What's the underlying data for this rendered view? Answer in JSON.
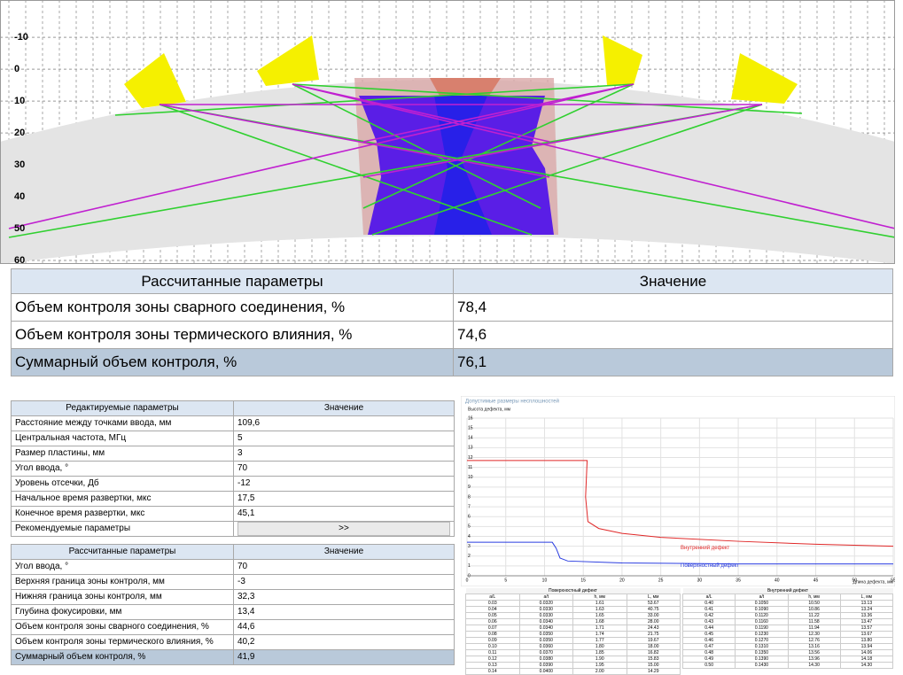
{
  "visualization": {
    "ylim": [
      -21.7,
      61.1
    ],
    "yticks": [
      -10,
      0,
      10,
      20,
      30,
      40,
      50,
      60
    ]
  },
  "result_table": {
    "header": [
      "Рассчитанные параметры",
      "Значение"
    ],
    "rows": [
      [
        "Объем контроля зоны сварного соединения, %",
        "78,4"
      ],
      [
        "Объем контроля зоны термического влияния, %",
        "74,6"
      ],
      [
        "Суммарный объем контроля, %",
        "76,1"
      ]
    ]
  },
  "editable_table": {
    "header": [
      "Редактируемые параметры",
      "Значение"
    ],
    "rows": [
      [
        "Расстояние между точками ввода, мм",
        "109,6"
      ],
      [
        "Центральная частота, МГц",
        "5"
      ],
      [
        "Размер пластины, мм",
        "3"
      ],
      [
        "Угол ввода, °",
        "70"
      ],
      [
        "Уровень отсечки, Дб",
        "-12"
      ],
      [
        "Начальное время развертки, мкс",
        "17,5"
      ],
      [
        "Конечное  время развертки, мкс",
        "45,1"
      ]
    ],
    "recommended": "Рекомендуемые параметры",
    "button": ">>"
  },
  "calculated_table": {
    "header": [
      "Рассчитанные параметры",
      "Значение"
    ],
    "rows": [
      [
        "Угол ввода, °",
        "70"
      ],
      [
        "Верхняя граница зоны контроля, мм",
        "-3"
      ],
      [
        "Нижняя граница зоны контроля, мм",
        "32,3"
      ],
      [
        "Глубина фокусировки, мм",
        "13,4"
      ],
      [
        "Объем контроля зоны сварного соединения, %",
        "44,6"
      ],
      [
        "Объем контроля зоны термического влияния, %",
        "40,2"
      ],
      [
        "Суммарный объем контроля, %",
        "41,9"
      ]
    ]
  },
  "chart_data": {
    "type": "line",
    "title": "Допустимые размеры несплошностей",
    "y_label": "Высота дефекта, мм",
    "x_label": "Длина дефекта, мм",
    "xlim": [
      0,
      55
    ],
    "xticks": [
      0,
      5,
      10,
      15,
      20,
      25,
      30,
      35,
      40,
      45,
      50,
      55
    ],
    "ylim": [
      0,
      16
    ],
    "yticks": [
      0,
      1,
      2,
      3,
      4,
      5,
      6,
      7,
      8,
      9,
      10,
      11,
      12,
      13,
      14,
      15,
      16
    ],
    "grid": true,
    "series": [
      {
        "name": "Внутренний дефект",
        "color": "#e02828",
        "x": [
          0,
          15.5,
          15.3,
          15.6,
          17,
          20,
          25,
          35,
          45,
          55
        ],
        "values": [
          11.7,
          11.7,
          8,
          5.5,
          4.8,
          4.3,
          3.9,
          3.5,
          3.2,
          3.0
        ]
      },
      {
        "name": "Поверхностный дефект",
        "color": "#2a3de0",
        "x": [
          0,
          11,
          11.5,
          12,
          13,
          20,
          35,
          55
        ],
        "values": [
          3.4,
          3.4,
          2.8,
          1.8,
          1.5,
          1.3,
          1.2,
          1.2
        ]
      }
    ]
  },
  "defect_tables": [
    {
      "title": "Поверхностный дефект",
      "header": [
        "a/L",
        "a/t",
        "h, мм",
        "L, мм"
      ],
      "rows": [
        [
          "0.03",
          "0.0320",
          "1.61",
          "53.67"
        ],
        [
          "0.04",
          "0.0330",
          "1.63",
          "40.75"
        ],
        [
          "0.05",
          "0.0330",
          "1.65",
          "33.00"
        ],
        [
          "0.06",
          "0.0340",
          "1.68",
          "28.00"
        ],
        [
          "0.07",
          "0.0340",
          "1.71",
          "24.43"
        ],
        [
          "0.08",
          "0.0350",
          "1.74",
          "21.75"
        ],
        [
          "0.09",
          "0.0350",
          "1.77",
          "19.67"
        ],
        [
          "0.10",
          "0.0360",
          "1.80",
          "18.00"
        ],
        [
          "0.11",
          "0.0370",
          "1.85",
          "16.82"
        ],
        [
          "0.12",
          "0.0380",
          "1.90",
          "15.83"
        ],
        [
          "0.13",
          "0.0390",
          "1.95",
          "15.00"
        ],
        [
          "0.14",
          "0.0400",
          "2.00",
          "14.29"
        ]
      ]
    },
    {
      "title": "Внутренний дефект",
      "header": [
        "a/L",
        "a/t",
        "h, мм",
        "L, мм"
      ],
      "rows": [
        [
          "0.40",
          "0.1050",
          "10.50",
          "13.13"
        ],
        [
          "0.41",
          "0.1090",
          "10.86",
          "13.24"
        ],
        [
          "0.42",
          "0.1120",
          "11.22",
          "13.36"
        ],
        [
          "0.43",
          "0.1160",
          "11.58",
          "13.47"
        ],
        [
          "0.44",
          "0.1190",
          "11.94",
          "13.57"
        ],
        [
          "0.45",
          "0.1230",
          "12.30",
          "13.67"
        ],
        [
          "0.46",
          "0.1270",
          "12.76",
          "13.80"
        ],
        [
          "0.47",
          "0.1310",
          "13.16",
          "13.94"
        ],
        [
          "0.48",
          "0.1350",
          "13.56",
          "14.06"
        ],
        [
          "0.49",
          "0.1390",
          "13.96",
          "14.18"
        ],
        [
          "0.50",
          "0.1430",
          "14.30",
          "14.30"
        ]
      ]
    }
  ]
}
